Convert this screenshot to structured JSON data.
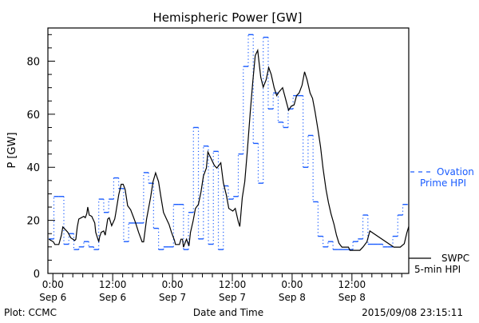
{
  "chart_data": {
    "type": "line",
    "title": "Hemispheric Power [GW]",
    "xlabel": "Date and Time",
    "ylabel": "P [GW]",
    "x_units": "hours since 2015-09-06 00:00 UT",
    "xlim": [
      -1,
      71.4
    ],
    "ylim": [
      0,
      92.5
    ],
    "yticks": [
      0,
      20,
      40,
      60,
      80
    ],
    "yminor_step": 5,
    "xminor_step_hours": 2,
    "xticks": [
      {
        "x": 0,
        "line1": "0:00",
        "line2": "Sep 6"
      },
      {
        "x": 12,
        "line1": "12:00",
        "line2": "Sep 6"
      },
      {
        "x": 24,
        "line1": "0:00",
        "line2": "Sep 7"
      },
      {
        "x": 36,
        "line1": "12:00",
        "line2": "Sep 7"
      },
      {
        "x": 48,
        "line1": "0:00",
        "line2": "Sep 8"
      },
      {
        "x": 60,
        "line1": "12:00",
        "line2": "Sep 8"
      }
    ],
    "grid": false,
    "legend_placement": "right",
    "series": [
      {
        "name": "Ovation Prime HPI",
        "legend_line1": "Ovation",
        "legend_line2": "Prime HPI",
        "color": "#1a5cff",
        "style": "step",
        "step_start_hour": -0.8,
        "step_hours": 1,
        "values": [
          13,
          29,
          29,
          11,
          15,
          9,
          10,
          12,
          10,
          9,
          28,
          23,
          28,
          36,
          32,
          12,
          19,
          19,
          19,
          38,
          34,
          17,
          9,
          10,
          10,
          26,
          26,
          9,
          23,
          55,
          13,
          48,
          11,
          46,
          9,
          33,
          28,
          29,
          45,
          78,
          90,
          49,
          34,
          89,
          62,
          68,
          57,
          55,
          62,
          67,
          67,
          40,
          52,
          27,
          14,
          10,
          12,
          9,
          9,
          9,
          9,
          12,
          13,
          22,
          11,
          11,
          11,
          10,
          10,
          14,
          22,
          26
        ]
      },
      {
        "name": "SWPC 5-min HPI",
        "legend_line1": "SWPC",
        "legend_line2": "5-min HPI",
        "color": "#000000",
        "style": "line",
        "points": [
          [
            -0.8,
            12.9
          ],
          [
            0.1,
            11.9
          ],
          [
            0.4,
            10.9
          ],
          [
            1.2,
            10.9
          ],
          [
            1.7,
            14.4
          ],
          [
            2.0,
            17.5
          ],
          [
            2.5,
            16.5
          ],
          [
            3.0,
            15.5
          ],
          [
            3.6,
            13.4
          ],
          [
            4.4,
            12.4
          ],
          [
            4.6,
            12.9
          ],
          [
            4.9,
            17.5
          ],
          [
            5.2,
            20.5
          ],
          [
            5.7,
            21
          ],
          [
            6.2,
            21.5
          ],
          [
            6.5,
            21
          ],
          [
            6.8,
            22.5
          ],
          [
            7.0,
            25
          ],
          [
            7.3,
            22
          ],
          [
            7.8,
            21.5
          ],
          [
            8.4,
            19
          ],
          [
            8.6,
            15.5
          ],
          [
            9.2,
            11.9
          ],
          [
            9.4,
            13.9
          ],
          [
            9.7,
            15.5
          ],
          [
            10.2,
            16
          ],
          [
            10.5,
            14.4
          ],
          [
            11.0,
            20.5
          ],
          [
            11.3,
            21
          ],
          [
            11.8,
            18
          ],
          [
            12.4,
            20.5
          ],
          [
            12.6,
            22.5
          ],
          [
            13.2,
            29.6
          ],
          [
            13.7,
            33.6
          ],
          [
            14.1,
            33.6
          ],
          [
            14.5,
            31.6
          ],
          [
            15.0,
            25.5
          ],
          [
            15.6,
            24
          ],
          [
            16.1,
            21.5
          ],
          [
            16.6,
            19
          ],
          [
            17.2,
            15.5
          ],
          [
            17.9,
            11.9
          ],
          [
            18.2,
            11.9
          ],
          [
            18.8,
            20.5
          ],
          [
            19.6,
            28.6
          ],
          [
            20.1,
            34.6
          ],
          [
            20.6,
            37.9
          ],
          [
            21.2,
            34.6
          ],
          [
            21.7,
            28.6
          ],
          [
            22.2,
            23
          ],
          [
            22.8,
            20.5
          ],
          [
            23.3,
            18.5
          ],
          [
            23.8,
            15.5
          ],
          [
            24.4,
            12.4
          ],
          [
            24.6,
            10.9
          ],
          [
            25.4,
            10.9
          ],
          [
            25.7,
            12.9
          ],
          [
            26.0,
            12.9
          ],
          [
            26.2,
            9.9
          ],
          [
            26.8,
            12.9
          ],
          [
            27.3,
            10.4
          ],
          [
            27.6,
            15.5
          ],
          [
            28.1,
            19.5
          ],
          [
            28.6,
            24.5
          ],
          [
            29.2,
            26
          ],
          [
            29.7,
            30.6
          ],
          [
            30.2,
            36.7
          ],
          [
            30.8,
            39.7
          ],
          [
            31.1,
            45.8
          ],
          [
            32.4,
            40.7
          ],
          [
            32.9,
            39.7
          ],
          [
            33.7,
            41.7
          ],
          [
            34.2,
            34.1
          ],
          [
            34.8,
            29.6
          ],
          [
            35.3,
            24.5
          ],
          [
            36.1,
            23.5
          ],
          [
            36.6,
            24.5
          ],
          [
            37.2,
            19.5
          ],
          [
            37.5,
            17.7
          ],
          [
            38.0,
            28.6
          ],
          [
            38.5,
            34.6
          ],
          [
            39.0,
            45.8
          ],
          [
            39.6,
            60.9
          ],
          [
            40.1,
            72.1
          ],
          [
            40.6,
            82.1
          ],
          [
            41.1,
            84.1
          ],
          [
            41.4,
            79
          ],
          [
            41.7,
            74
          ],
          [
            42.2,
            70.2
          ],
          [
            42.8,
            73
          ],
          [
            43.3,
            77.6
          ],
          [
            43.8,
            75
          ],
          [
            44.4,
            70
          ],
          [
            44.9,
            67
          ],
          [
            45.4,
            68.5
          ],
          [
            46.1,
            70
          ],
          [
            46.8,
            65
          ],
          [
            47.3,
            61.5
          ],
          [
            47.8,
            63
          ],
          [
            48.4,
            63.5
          ],
          [
            48.9,
            67
          ],
          [
            49.4,
            68
          ],
          [
            50.0,
            71
          ],
          [
            50.5,
            76
          ],
          [
            51.0,
            73
          ],
          [
            51.6,
            68
          ],
          [
            52.1,
            66
          ],
          [
            52.6,
            61
          ],
          [
            53.2,
            54
          ],
          [
            53.7,
            47.8
          ],
          [
            54.2,
            39.7
          ],
          [
            54.8,
            31.6
          ],
          [
            55.3,
            26.6
          ],
          [
            55.8,
            22.5
          ],
          [
            56.4,
            18.5
          ],
          [
            56.9,
            14.4
          ],
          [
            57.4,
            11.4
          ],
          [
            58.0,
            9.9
          ],
          [
            59.3,
            9.9
          ],
          [
            59.6,
            8.7
          ],
          [
            61.6,
            8.7
          ],
          [
            62.2,
            9.9
          ],
          [
            63.0,
            11.9
          ],
          [
            63.6,
            16
          ],
          [
            68.4,
            9.9
          ],
          [
            69.7,
            9.9
          ],
          [
            70.5,
            11.2
          ],
          [
            71.0,
            15.2
          ],
          [
            71.4,
            17.7
          ]
        ]
      }
    ]
  },
  "footer": {
    "left": "Plot: CCMC",
    "right": "2015/09/08 23:15:11"
  }
}
